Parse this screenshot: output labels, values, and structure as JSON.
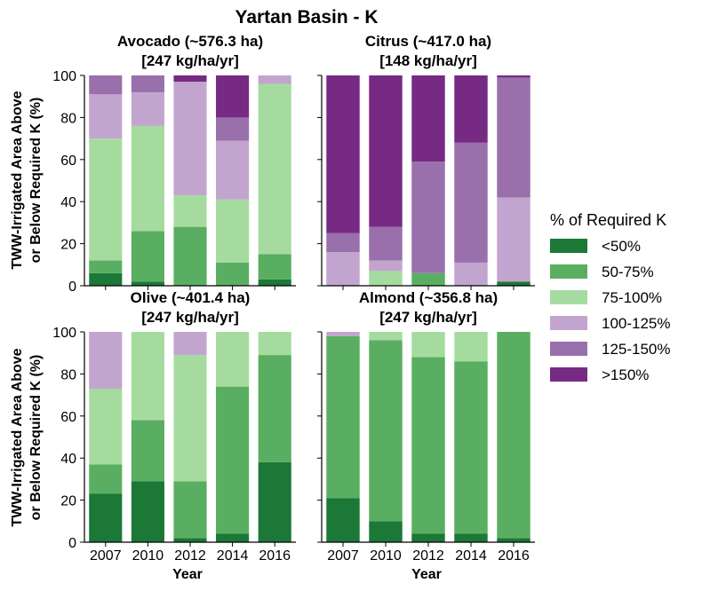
{
  "figure_title": "Yartan Basin - K",
  "y_axis_label_lines": [
    "TWW-Irrigated Area Above",
    "or Below Required K (%)"
  ],
  "x_axis_label": "Year",
  "legend": {
    "title": "% of Required K",
    "items": [
      {
        "label": "<50%",
        "color": "#1b7837"
      },
      {
        "label": "50-75%",
        "color": "#5aae61"
      },
      {
        "label": "75-100%",
        "color": "#a6dba0"
      },
      {
        "label": "100-125%",
        "color": "#c2a5cf"
      },
      {
        "label": "125-150%",
        "color": "#9970ab"
      },
      {
        "label": ">150%",
        "color": "#762a83"
      }
    ]
  },
  "chart_data": [
    {
      "type": "bar",
      "stacked": true,
      "title_lines": [
        "Avocado (~576.3 ha)",
        "[247 kg/ha/yr]"
      ],
      "categories": [
        "2007",
        "2010",
        "2012",
        "2014",
        "2016"
      ],
      "ylim": [
        0,
        100
      ],
      "yticks": [
        0,
        20,
        40,
        60,
        80,
        100
      ],
      "series": [
        {
          "name": "<50%",
          "values": [
            6,
            2,
            0,
            0,
            3
          ]
        },
        {
          "name": "50-75%",
          "values": [
            6,
            24,
            28,
            11,
            12
          ]
        },
        {
          "name": "75-100%",
          "values": [
            58,
            50,
            15,
            30,
            81
          ]
        },
        {
          "name": "100-125%",
          "values": [
            21,
            16,
            54,
            28,
            4
          ]
        },
        {
          "name": "125-150%",
          "values": [
            9,
            8,
            0,
            11,
            0
          ]
        },
        {
          "name": ">150%",
          "values": [
            0,
            0,
            3,
            20,
            0
          ]
        }
      ]
    },
    {
      "type": "bar",
      "stacked": true,
      "title_lines": [
        "Citrus (~417.0 ha)",
        "[148 kg/ha/yr]"
      ],
      "categories": [
        "2007",
        "2010",
        "2012",
        "2014",
        "2016"
      ],
      "ylim": [
        0,
        100
      ],
      "yticks": [
        0,
        20,
        40,
        60,
        80,
        100
      ],
      "series": [
        {
          "name": "<50%",
          "values": [
            0,
            0,
            0,
            0,
            2
          ]
        },
        {
          "name": "50-75%",
          "values": [
            0,
            0,
            6,
            0,
            0
          ]
        },
        {
          "name": "75-100%",
          "values": [
            0,
            7,
            0,
            0,
            0
          ]
        },
        {
          "name": "100-125%",
          "values": [
            16,
            5,
            0,
            11,
            40
          ]
        },
        {
          "name": "125-150%",
          "values": [
            9,
            16,
            53,
            57,
            57
          ]
        },
        {
          "name": ">150%",
          "values": [
            75,
            72,
            41,
            32,
            1
          ]
        }
      ]
    },
    {
      "type": "bar",
      "stacked": true,
      "title_lines": [
        "Olive (~401.4 ha)",
        "[247 kg/ha/yr]"
      ],
      "categories": [
        "2007",
        "2010",
        "2012",
        "2014",
        "2016"
      ],
      "ylim": [
        0,
        100
      ],
      "yticks": [
        0,
        20,
        40,
        60,
        80,
        100
      ],
      "series": [
        {
          "name": "<50%",
          "values": [
            23,
            29,
            2,
            4,
            38
          ]
        },
        {
          "name": "50-75%",
          "values": [
            14,
            29,
            27,
            70,
            51
          ]
        },
        {
          "name": "75-100%",
          "values": [
            36,
            42,
            60,
            26,
            11
          ]
        },
        {
          "name": "100-125%",
          "values": [
            27,
            0,
            11,
            0,
            0
          ]
        },
        {
          "name": "125-150%",
          "values": [
            0,
            0,
            0,
            0,
            0
          ]
        },
        {
          "name": ">150%",
          "values": [
            0,
            0,
            0,
            0,
            0
          ]
        }
      ]
    },
    {
      "type": "bar",
      "stacked": true,
      "title_lines": [
        "Almond (~356.8 ha)",
        "[247 kg/ha/yr]"
      ],
      "categories": [
        "2007",
        "2010",
        "2012",
        "2014",
        "2016"
      ],
      "ylim": [
        0,
        100
      ],
      "yticks": [
        0,
        20,
        40,
        60,
        80,
        100
      ],
      "series": [
        {
          "name": "<50%",
          "values": [
            21,
            10,
            4,
            4,
            2
          ]
        },
        {
          "name": "50-75%",
          "values": [
            77,
            86,
            84,
            82,
            98
          ]
        },
        {
          "name": "75-100%",
          "values": [
            0,
            4,
            12,
            14,
            0
          ]
        },
        {
          "name": "100-125%",
          "values": [
            2,
            0,
            0,
            0,
            0
          ]
        },
        {
          "name": "125-150%",
          "values": [
            0,
            0,
            0,
            0,
            0
          ]
        },
        {
          "name": ">150%",
          "values": [
            0,
            0,
            0,
            0,
            0
          ]
        }
      ]
    }
  ]
}
